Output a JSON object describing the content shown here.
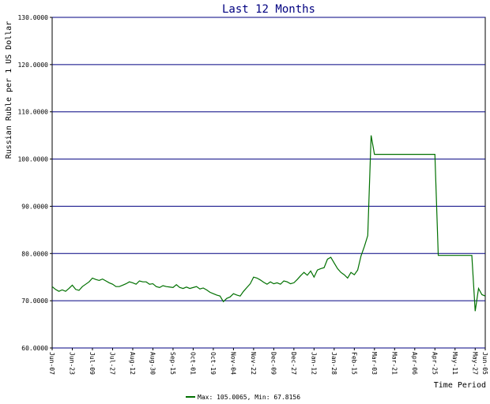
{
  "chart_data": {
    "type": "line",
    "title": "Last 12 Months",
    "y_label": "Russian Ruble per 1 US Dollar",
    "x_label": "Time Period",
    "categories": [
      "Jun-07",
      null,
      null,
      null,
      null,
      null,
      "Jun-23",
      null,
      null,
      null,
      null,
      null,
      "Jul-09",
      null,
      null,
      null,
      null,
      null,
      "Jul-27",
      null,
      null,
      null,
      null,
      null,
      "Aug-12",
      null,
      null,
      null,
      null,
      null,
      "Aug-30",
      null,
      null,
      null,
      null,
      null,
      "Sep-15",
      null,
      null,
      null,
      null,
      null,
      "Oct-01",
      null,
      null,
      null,
      null,
      null,
      "Oct-19",
      null,
      null,
      null,
      null,
      null,
      "Nov-04",
      null,
      null,
      null,
      null,
      null,
      "Nov-22",
      null,
      null,
      null,
      null,
      null,
      "Dec-09",
      null,
      null,
      null,
      null,
      null,
      "Dec-27",
      null,
      null,
      null,
      null,
      null,
      "Jan-12",
      null,
      null,
      null,
      null,
      null,
      "Jan-28",
      null,
      null,
      null,
      null,
      null,
      "Feb-15",
      null,
      null,
      null,
      null,
      null,
      "Mar-03",
      null,
      null,
      null,
      null,
      null,
      "Mar-21",
      null,
      null,
      null,
      null,
      null,
      "Apr-06",
      null,
      null,
      null,
      null,
      null,
      "Apr-25",
      null,
      null,
      null,
      null,
      null,
      "May-11",
      null,
      null,
      null,
      null,
      null,
      "May-27",
      null,
      null,
      "Jun-05"
    ],
    "series": [
      {
        "name": "Max: 105.0065, Min: 67.8156",
        "color": "#007000",
        "values": [
          73.0,
          72.4,
          72.0,
          72.3,
          72.0,
          72.6,
          73.3,
          72.4,
          72.2,
          73.0,
          73.5,
          74.0,
          74.8,
          74.5,
          74.3,
          74.6,
          74.2,
          73.8,
          73.5,
          73.0,
          73.0,
          73.3,
          73.6,
          74.0,
          73.8,
          73.5,
          74.2,
          74.0,
          74.0,
          73.5,
          73.6,
          73.0,
          72.8,
          73.2,
          73.0,
          72.9,
          72.8,
          73.4,
          72.8,
          72.6,
          72.9,
          72.6,
          72.8,
          73.0,
          72.5,
          72.7,
          72.3,
          71.8,
          71.5,
          71.2,
          71.0,
          69.8,
          70.5,
          70.8,
          71.5,
          71.2,
          71.0,
          72.0,
          72.8,
          73.6,
          75.0,
          74.8,
          74.4,
          73.9,
          73.5,
          74.0,
          73.6,
          73.8,
          73.5,
          74.2,
          74.0,
          73.6,
          73.8,
          74.5,
          75.3,
          76.0,
          75.4,
          76.3,
          75.0,
          76.5,
          76.8,
          77.0,
          78.8,
          79.2,
          78.0,
          76.8,
          76.0,
          75.5,
          74.8,
          76.0,
          75.5,
          76.5,
          79.5,
          81.5,
          83.8,
          105.0,
          101.0,
          101.0,
          101.0,
          101.0,
          101.0,
          101.0,
          101.0,
          101.0,
          101.0,
          101.0,
          101.0,
          101.0,
          101.0,
          101.0,
          101.0,
          101.0,
          101.0,
          101.0,
          101.0,
          79.6,
          79.6,
          79.6,
          79.6,
          79.6,
          79.6,
          79.6,
          79.6,
          79.6,
          79.6,
          79.6,
          67.8,
          72.6,
          71.3,
          71.0
        ]
      }
    ],
    "ylim": [
      60,
      130
    ],
    "yticks": [
      {
        "value": 60,
        "label": "60.0000"
      },
      {
        "value": 70,
        "label": "70.0000"
      },
      {
        "value": 80,
        "label": "80.0000"
      },
      {
        "value": 90,
        "label": "90.0000"
      },
      {
        "value": 100,
        "label": "100.0000"
      },
      {
        "value": 110,
        "label": "110.0000"
      },
      {
        "value": 120,
        "label": "120.0000"
      },
      {
        "value": 130,
        "label": "130.0000"
      }
    ],
    "grid": true,
    "grid_color": "#000080"
  }
}
